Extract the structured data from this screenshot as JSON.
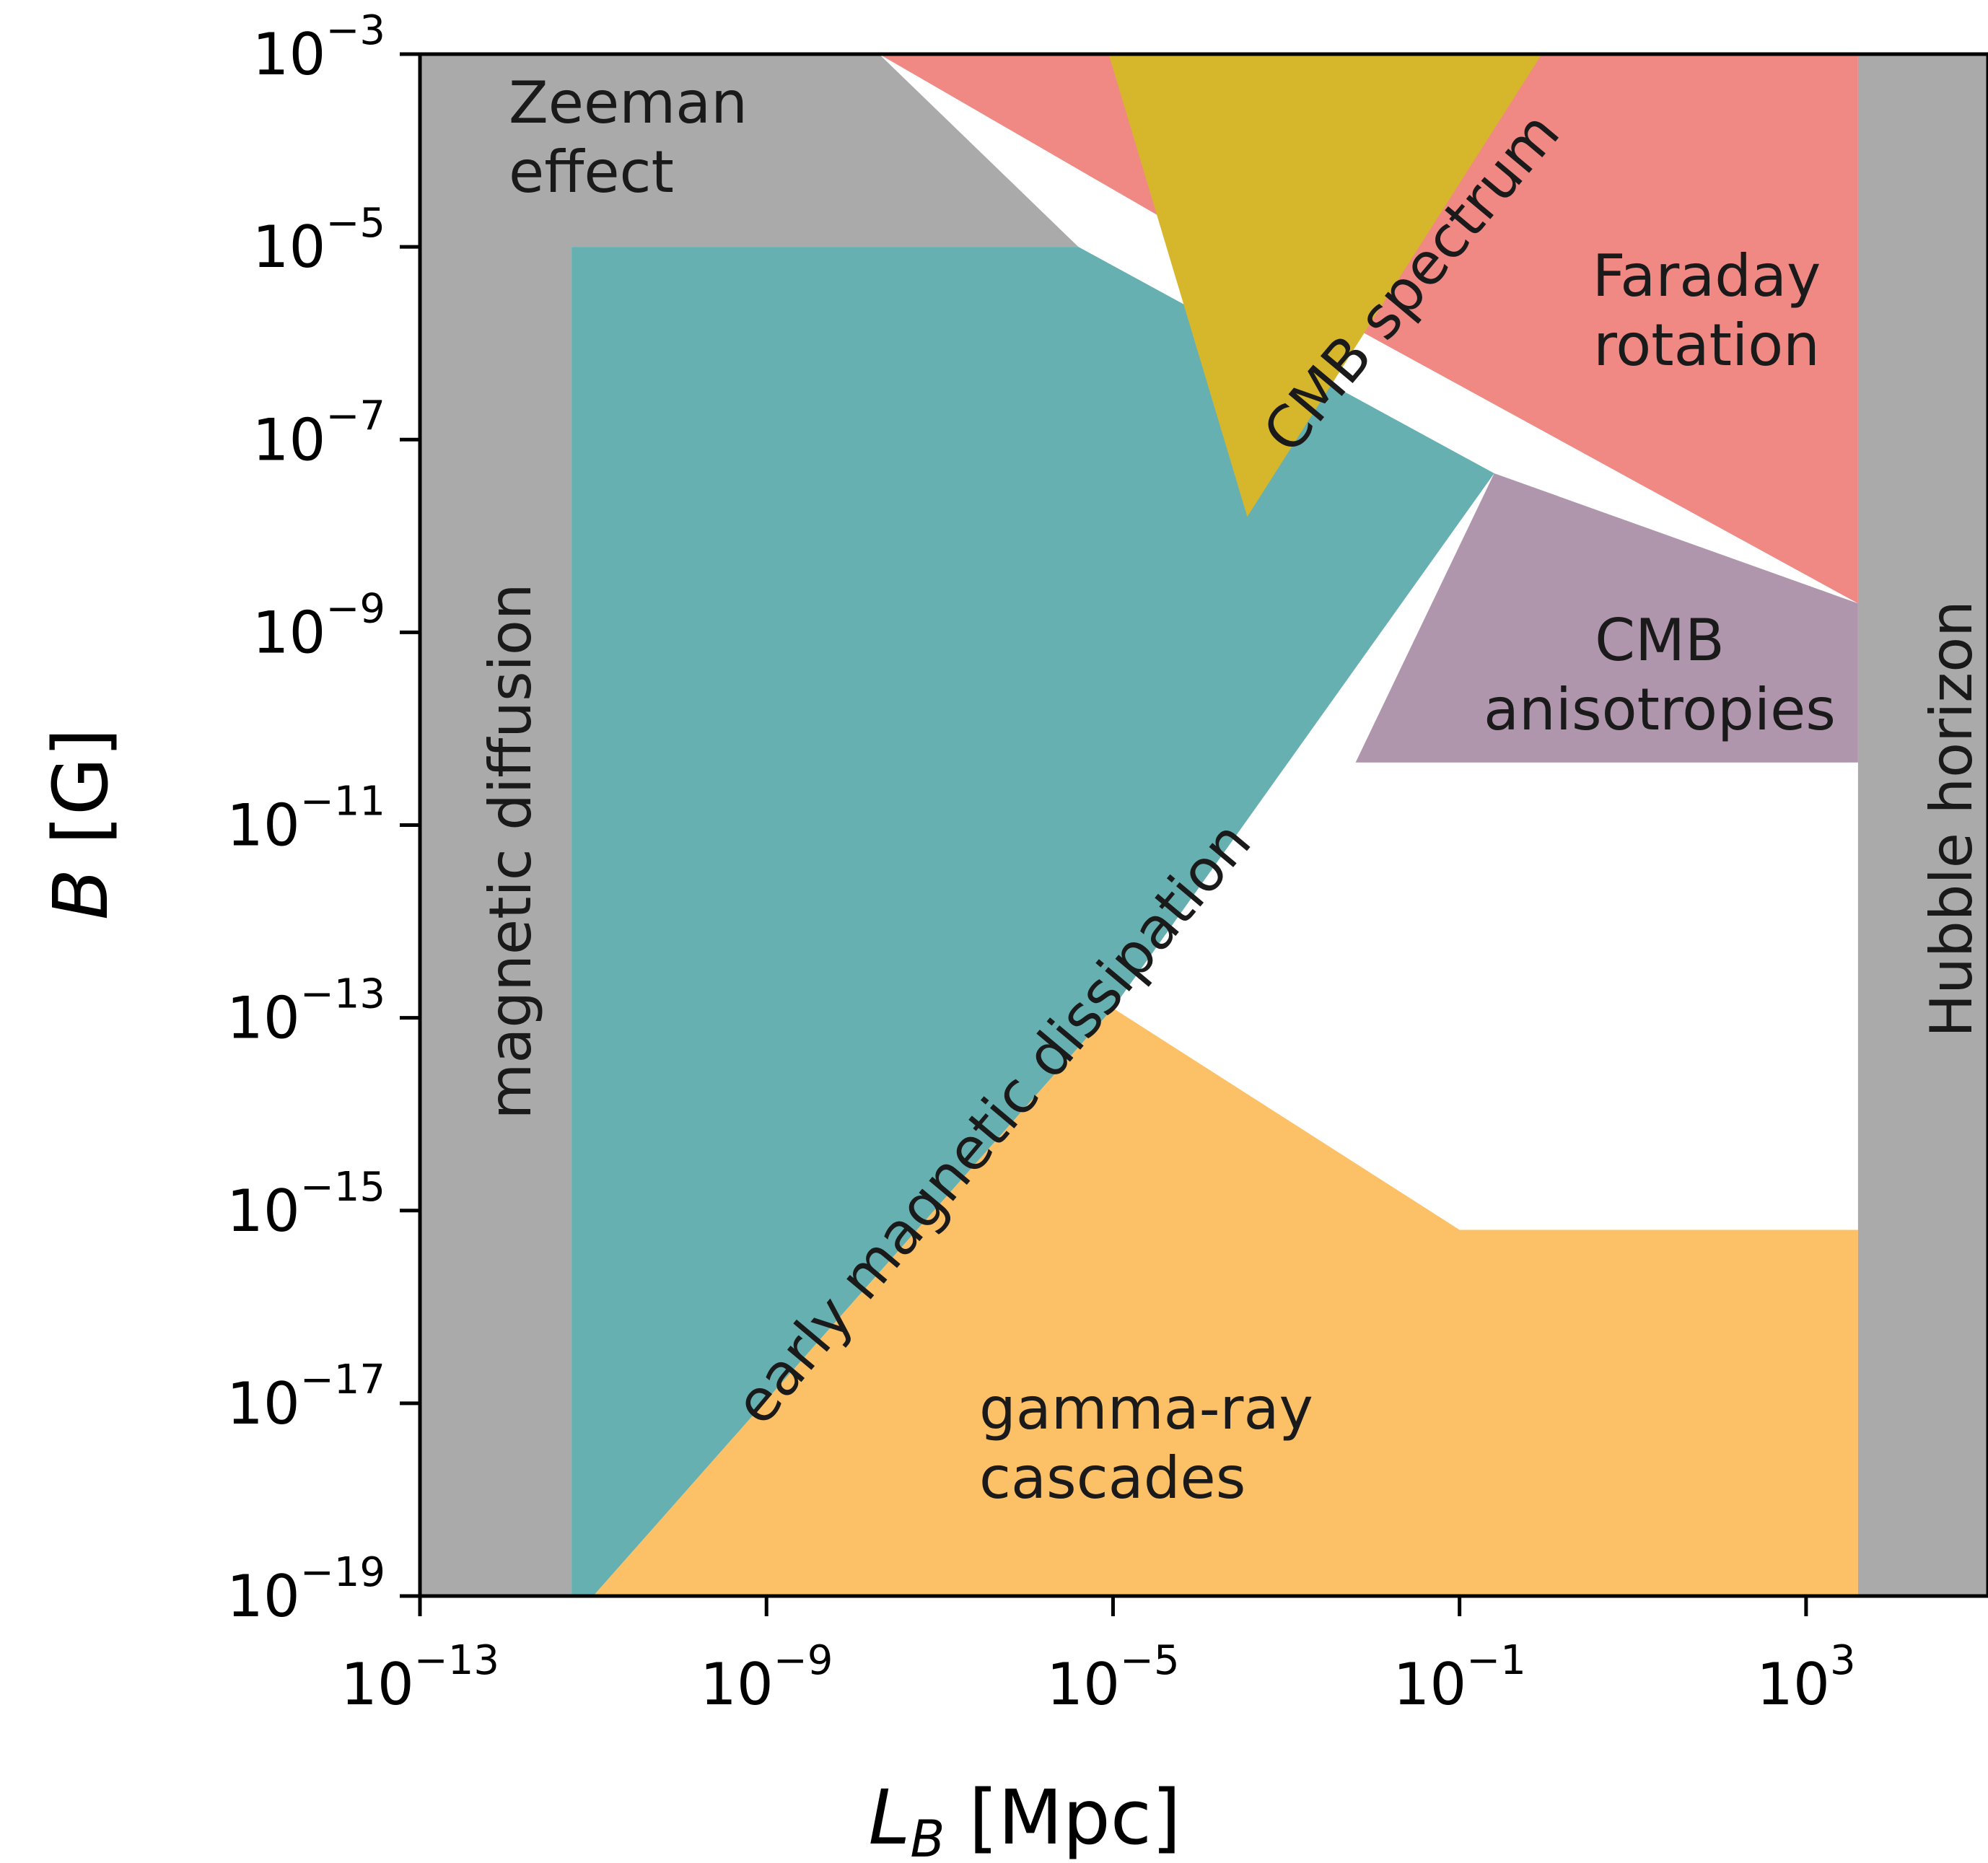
{
  "chart_data": {
    "type": "area",
    "title": "",
    "xlabel": "L",
    "xlabel_sub": "B",
    "xlabel_unit": " [Mpc]",
    "ylabel": "B",
    "ylabel_unit": " [G]",
    "xscale": "log",
    "yscale": "log",
    "xlim_exp": [
      -13,
      5.1
    ],
    "ylim_exp": [
      -19,
      -3
    ],
    "xticks_exp": [
      -13,
      -9,
      -5,
      -1,
      3
    ],
    "yticks_exp": [
      -19,
      -17,
      -15,
      -13,
      -11,
      -9,
      -7,
      -5,
      -3
    ],
    "tick_base": "10",
    "grid": false,
    "regions": [
      {
        "name": "Zeeman effect",
        "label_lines": [
          "Zeeman",
          "effect"
        ],
        "color": "#aaaaaa",
        "polygon_exp": [
          [
            -13,
            -3
          ],
          [
            -7.7,
            -3
          ],
          [
            -5.4,
            -5
          ],
          [
            -11.25,
            -5
          ],
          [
            -11.25,
            -19
          ],
          [
            -13,
            -19
          ]
        ]
      },
      {
        "name": "magnetic diffusion",
        "label_lines": [
          "magnetic diffusion"
        ],
        "color": "#aaaaaa",
        "polygon_exp": []
      },
      {
        "name": "Hubble horizon",
        "label_lines": [
          "Hubble horizon"
        ],
        "color": "#aaaaaa",
        "polygon_exp": [
          [
            3.6,
            -3
          ],
          [
            5.1,
            -3
          ],
          [
            5.1,
            -19
          ],
          [
            3.6,
            -19
          ]
        ]
      },
      {
        "name": "Faraday rotation",
        "label_lines": [
          "Faraday",
          "rotation"
        ],
        "color": "#f08884",
        "polygon_exp": [
          [
            -7.7,
            -3
          ],
          [
            3.6,
            -3
          ],
          [
            3.6,
            -8.7
          ],
          [
            -2.7,
            -5.6
          ]
        ]
      },
      {
        "name": "early magnetic dissipation",
        "label_lines": [
          "early magnetic dissipation"
        ],
        "color": "#67b0b1",
        "polygon_exp": [
          [
            -11.25,
            -5
          ],
          [
            -5.4,
            -5
          ],
          [
            -0.6,
            -7.35
          ],
          [
            -5.0,
            -12.9
          ],
          [
            -11.0,
            -19
          ],
          [
            -11.25,
            -19
          ]
        ]
      },
      {
        "name": "CMB anisotropies",
        "label_lines": [
          "CMB",
          "anisotropies"
        ],
        "color": "#b096ac",
        "polygon_exp": [
          [
            -0.6,
            -7.35
          ],
          [
            3.6,
            -8.7
          ],
          [
            3.6,
            -10.35
          ],
          [
            -2.2,
            -10.35
          ]
        ]
      },
      {
        "name": "gamma-ray cascades",
        "label_lines": [
          "gamma-ray",
          "cascades"
        ],
        "color": "#fcc067",
        "polygon_exp": [
          [
            -11.0,
            -19
          ],
          [
            -5.0,
            -12.9
          ],
          [
            -1.0,
            -15.2
          ],
          [
            3.6,
            -15.2
          ],
          [
            3.6,
            -19
          ]
        ]
      },
      {
        "name": "CMB spectrum",
        "label_lines": [
          "CMB spectrum"
        ],
        "color": "#d6b62b",
        "polygon_exp": [
          [
            -5.05,
            -3
          ],
          [
            -0.05,
            -3
          ],
          [
            -3.45,
            -7.8
          ]
        ]
      }
    ]
  }
}
